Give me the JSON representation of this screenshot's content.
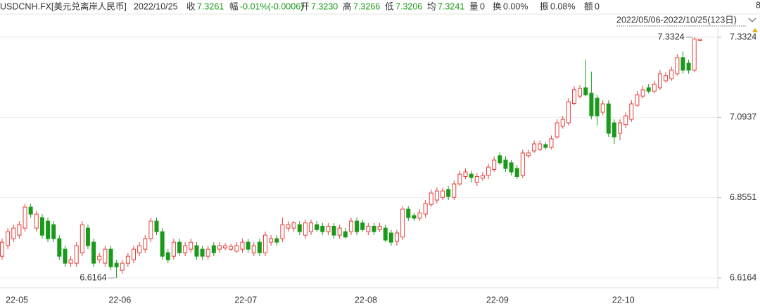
{
  "header": {
    "symbol": "USDCNH.FX[美元兑离岸人民币]",
    "date": "2022/10/25",
    "labels": {
      "close": "收",
      "change": "幅",
      "open": "开",
      "high": "高",
      "low": "低",
      "avg": "均",
      "volume": "量",
      "turnover": "换",
      "amplitude": "振",
      "amount": "额"
    },
    "close": "7.3261",
    "change": "-0.01%(-0.0006)",
    "open": "7.3230",
    "high": "7.3266",
    "low": "7.3206",
    "avg": "7.3241",
    "volume": "0",
    "turnover": "0.00%",
    "amplitude": "0.08%",
    "amount": "0",
    "overflow": "8"
  },
  "chart_data": {
    "type": "candlestick",
    "range_label": "2022/05/06-2022/10/25(123日)",
    "up_color": "#e5403a",
    "down_color": "#1a9a1a",
    "grid": true,
    "ylim": [
      6.5872,
      7.3595
    ],
    "yticks": [
      6.6164,
      6.8551,
      7.0937,
      7.3324
    ],
    "categories": [
      "22-05",
      null,
      null,
      null,
      null,
      null,
      null,
      null,
      null,
      null,
      null,
      null,
      null,
      null,
      null,
      null,
      null,
      null,
      "22-06",
      null,
      null,
      null,
      null,
      null,
      null,
      null,
      null,
      null,
      null,
      null,
      null,
      null,
      null,
      null,
      null,
      null,
      null,
      null,
      null,
      null,
      "22-07",
      null,
      null,
      null,
      null,
      null,
      null,
      null,
      null,
      null,
      null,
      null,
      null,
      null,
      null,
      null,
      null,
      null,
      null,
      null,
      null,
      "22-08",
      null,
      null,
      null,
      null,
      null,
      null,
      null,
      null,
      null,
      null,
      null,
      null,
      null,
      null,
      null,
      null,
      null,
      null,
      null,
      null,
      null,
      null,
      "22-09",
      null,
      null,
      null,
      null,
      null,
      null,
      null,
      null,
      null,
      null,
      null,
      null,
      null,
      null,
      null,
      null,
      null,
      null,
      null,
      null,
      null,
      "22-10",
      null,
      null,
      null,
      null,
      null,
      null,
      null,
      null,
      null,
      null,
      null,
      null,
      null,
      null,
      null,
      null
    ],
    "open": [
      6.6809,
      6.7123,
      6.7332,
      6.7436,
      6.7645,
      6.8271,
      6.7645,
      6.7958,
      6.7853,
      6.7749,
      6.7332,
      6.7018,
      6.6601,
      6.6601,
      6.6914,
      6.7645,
      6.7227,
      6.6705,
      6.6601,
      6.7018,
      6.6601,
      6.6392,
      6.6601,
      6.6705,
      6.6914,
      6.7018,
      6.7332,
      6.7853,
      6.754,
      6.6914,
      6.6809,
      6.7227,
      6.6914,
      6.7018,
      6.7123,
      6.7018,
      6.6809,
      6.7123,
      6.7018,
      6.706,
      6.7018,
      6.696,
      6.7018,
      6.7227,
      6.6914,
      6.7227,
      6.6914,
      6.7227,
      6.7332,
      6.7332,
      6.7645,
      6.7645,
      6.7749,
      6.7436,
      6.754,
      6.7749,
      6.77,
      6.754,
      6.77,
      6.7436,
      6.754,
      6.754,
      6.7853,
      6.78,
      6.754,
      6.77,
      6.76,
      6.7645,
      6.75,
      6.725,
      6.738,
      6.821,
      6.802,
      6.794,
      6.8062,
      6.835,
      6.848,
      6.856,
      6.8793,
      6.856,
      6.896,
      6.918,
      6.925,
      6.9002,
      6.913,
      6.9211,
      6.939,
      6.98,
      6.967,
      6.959,
      6.942,
      6.9211,
      6.98,
      6.9942,
      6.999,
      7.013,
      7.0046,
      7.0359,
      7.0672,
      7.0777,
      7.135,
      7.157,
      7.1821,
      7.166,
      7.1508,
      7.109,
      7.134,
      7.0777,
      7.0464,
      7.072,
      7.0881,
      7.1299,
      7.157,
      7.1821,
      7.1716,
      7.1821,
      7.2029,
      7.209,
      7.2238,
      7.272,
      7.2551,
      7.2343,
      7.323
    ],
    "high": [
      6.7332,
      6.7645,
      6.7749,
      6.7853,
      6.8376,
      6.8376,
      6.8167,
      6.8062,
      6.7958,
      6.7853,
      6.7436,
      6.7123,
      6.6809,
      6.7227,
      6.7853,
      6.7749,
      6.7332,
      6.6914,
      6.7123,
      6.7123,
      6.6705,
      6.6705,
      6.6914,
      6.7123,
      6.7227,
      6.7436,
      6.7958,
      6.7958,
      6.7645,
      6.7018,
      6.7332,
      6.7332,
      6.7227,
      6.7332,
      6.7227,
      6.7123,
      6.7123,
      6.7227,
      6.7227,
      6.72,
      6.718,
      6.7227,
      6.7332,
      6.7332,
      6.7227,
      6.7332,
      6.754,
      6.7436,
      6.7436,
      6.7958,
      6.7853,
      6.7853,
      6.7853,
      6.79,
      6.79,
      6.7853,
      6.78,
      6.78,
      6.78,
      6.7749,
      6.7645,
      6.7958,
      6.7958,
      6.79,
      6.78,
      6.78,
      6.78,
      6.7749,
      6.76,
      6.76,
      6.83,
      6.83,
      6.81,
      6.82,
      6.848,
      6.8793,
      6.885,
      6.885,
      6.8898,
      6.906,
      6.935,
      6.942,
      6.935,
      6.928,
      6.9315,
      6.956,
      6.978,
      6.99,
      6.978,
      6.967,
      6.9524,
      6.998,
      6.998,
      7.0255,
      7.0255,
      7.02,
      7.04,
      7.0881,
      7.0986,
      7.1508,
      7.186,
      7.19,
      7.2656,
      7.23,
      7.1612,
      7.145,
      7.145,
      7.0881,
      7.0881,
      7.109,
      7.145,
      7.1716,
      7.188,
      7.1925,
      7.2029,
      7.2343,
      7.229,
      7.245,
      7.282,
      7.29,
      7.2656,
      7.3324,
      7.3266
    ],
    "low": [
      6.6705,
      6.7018,
      6.7227,
      6.7332,
      6.754,
      6.7958,
      6.754,
      6.7332,
      6.7227,
      6.7227,
      6.6705,
      6.6496,
      6.6496,
      6.6496,
      6.6809,
      6.7018,
      6.6496,
      6.6601,
      6.6496,
      6.6392,
      6.6164,
      6.6287,
      6.6496,
      6.6601,
      6.6809,
      6.6914,
      6.7227,
      6.7436,
      6.6705,
      6.6601,
      6.6705,
      6.6809,
      6.6809,
      6.6914,
      6.6705,
      6.6705,
      6.6705,
      6.6809,
      6.6914,
      6.699,
      6.696,
      6.6914,
      6.6914,
      6.6914,
      6.6809,
      6.6809,
      6.6809,
      6.7123,
      6.7123,
      6.7227,
      6.754,
      6.754,
      6.7436,
      6.7332,
      6.7436,
      6.754,
      6.7436,
      6.7436,
      6.7332,
      6.7332,
      6.7332,
      6.7436,
      6.7436,
      6.754,
      6.7436,
      6.7436,
      6.754,
      6.7227,
      6.7123,
      6.7123,
      6.729,
      6.7853,
      6.7853,
      6.7853,
      6.7958,
      6.8271,
      6.8376,
      6.848,
      6.848,
      6.848,
      6.8898,
      6.9106,
      6.9002,
      6.8898,
      6.905,
      6.9106,
      6.9315,
      6.9524,
      6.9315,
      6.9211,
      6.9106,
      6.913,
      6.9733,
      6.988,
      6.9942,
      6.998,
      6.999,
      7.03,
      7.06,
      7.07,
      7.13,
      7.15,
      7.156,
      7.088,
      7.07,
      7.1,
      7.0359,
      7.015,
      7.0255,
      7.062,
      7.08,
      7.125,
      7.15,
      7.165,
      7.165,
      7.176,
      7.197,
      7.2029,
      7.218,
      7.2238,
      7.2238,
      7.229,
      7.3206
    ],
    "close": [
      6.7227,
      6.754,
      6.7645,
      6.7749,
      6.8271,
      6.8062,
      6.8062,
      6.7436,
      6.7332,
      6.7332,
      6.6809,
      6.6601,
      6.6705,
      6.7123,
      6.7749,
      6.7123,
      6.6601,
      6.6809,
      6.7018,
      6.6496,
      6.6496,
      6.6601,
      6.6809,
      6.7018,
      6.7123,
      6.7332,
      6.7853,
      6.754,
      6.6809,
      6.6705,
      6.7227,
      6.6914,
      6.7123,
      6.7227,
      6.6809,
      6.6809,
      6.7018,
      6.6914,
      6.7123,
      6.7123,
      6.71,
      6.7123,
      6.7227,
      6.7018,
      6.7123,
      6.6914,
      6.7436,
      6.7332,
      6.7227,
      6.7749,
      6.7749,
      6.78,
      6.754,
      6.78,
      6.78,
      6.76,
      6.754,
      6.77,
      6.7436,
      6.7645,
      6.738,
      6.7853,
      6.754,
      6.76,
      6.77,
      6.754,
      6.77,
      6.729,
      6.7227,
      6.75,
      6.821,
      6.7958,
      6.794,
      6.81,
      6.8376,
      6.8689,
      6.875,
      6.875,
      6.8584,
      6.896,
      6.925,
      6.9315,
      6.915,
      6.918,
      6.9211,
      6.946,
      6.967,
      6.959,
      6.942,
      6.9315,
      6.918,
      6.988,
      6.988,
      7.015,
      7.015,
      7.0046,
      7.03,
      7.0777,
      7.0881,
      7.1403,
      7.176,
      7.18,
      7.1612,
      7.0986,
      7.0986,
      7.134,
      7.0464,
      7.0359,
      7.0777,
      7.0986,
      7.134,
      7.1612,
      7.176,
      7.1716,
      7.1925,
      7.2238,
      7.218,
      7.2343,
      7.272,
      7.2343,
      7.2343,
      7.3267,
      7.3261
    ]
  }
}
